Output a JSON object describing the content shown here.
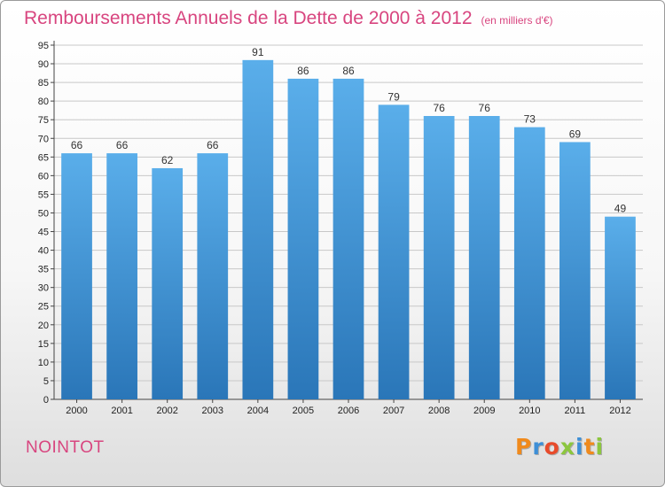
{
  "header": {
    "title": "Remboursements Annuels de la Dette de 2000 à 2012",
    "unit": "(en milliers d'€)"
  },
  "footer": {
    "commune": "NOINTOT",
    "logo_text": "Proxiti",
    "logo_colors": [
      "#f08a1c",
      "#3e8fd6",
      "#e84b2b",
      "#8cc63e",
      "#3e8fd6",
      "#f08a1c",
      "#8cc63e"
    ]
  },
  "colors": {
    "bar_top": "#5aaeea",
    "bar_bottom": "#2a76b8",
    "grid": "#c8c8c8",
    "title": "#d8457f"
  },
  "chart_data": {
    "type": "bar",
    "categories": [
      "2000",
      "2001",
      "2002",
      "2003",
      "2004",
      "2005",
      "2006",
      "2007",
      "2008",
      "2009",
      "2010",
      "2011",
      "2012"
    ],
    "values": [
      66,
      66,
      62,
      66,
      91,
      86,
      86,
      79,
      76,
      76,
      73,
      69,
      49
    ],
    "ylim": [
      0,
      95
    ],
    "yticks": [
      0,
      5,
      10,
      15,
      20,
      25,
      30,
      35,
      40,
      45,
      50,
      55,
      60,
      65,
      70,
      75,
      80,
      85,
      90,
      95
    ],
    "grid": true,
    "xlabel": "",
    "ylabel": ""
  }
}
